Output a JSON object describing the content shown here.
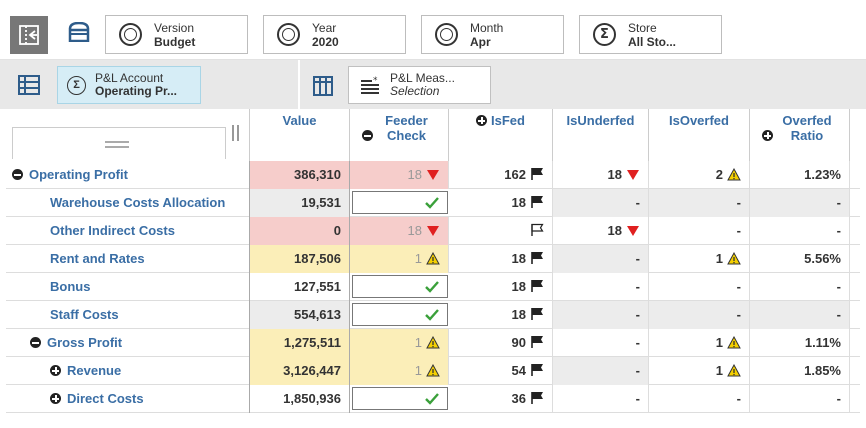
{
  "filters": [
    {
      "label": "Version",
      "value": "Budget",
      "icon": "target-icon"
    },
    {
      "label": "Year",
      "value": "2020",
      "icon": "target-icon"
    },
    {
      "label": "Month",
      "value": "Apr",
      "icon": "target-icon"
    },
    {
      "label": "Store",
      "value": "All Sto...",
      "icon": "sigma-icon"
    }
  ],
  "rows_dim": {
    "label": "P&L Account",
    "value": "Operating Pr..."
  },
  "cols_dim": {
    "label": "P&L Meas...",
    "value": "Selection"
  },
  "columns": [
    "Value",
    "Feeder Check",
    "IsFed",
    "IsUnderfed",
    "IsOverfed",
    "Overfed Ratio"
  ],
  "status_colors": {
    "red": "#f6cdcb",
    "yellow": "#fbeeb8",
    "grey": "#ececec",
    "link": "#3a6ea5"
  },
  "rows": [
    {
      "name": "Operating Profit",
      "value": "386,310",
      "feeder": "18",
      "isfed": "162",
      "underfed": "18",
      "overfed": "2",
      "ratio": "1.23%"
    },
    {
      "name": "Warehouse Costs Allocation",
      "value": "19,531",
      "feeder": "",
      "isfed": "18",
      "underfed": "-",
      "overfed": "-",
      "ratio": "-"
    },
    {
      "name": "Other Indirect Costs",
      "value": "0",
      "feeder": "18",
      "isfed": "",
      "underfed": "18",
      "overfed": "-",
      "ratio": "-"
    },
    {
      "name": "Rent and Rates",
      "value": "187,506",
      "feeder": "1",
      "isfed": "18",
      "underfed": "-",
      "overfed": "1",
      "ratio": "5.56%"
    },
    {
      "name": "Bonus",
      "value": "127,551",
      "feeder": "",
      "isfed": "18",
      "underfed": "-",
      "overfed": "-",
      "ratio": "-"
    },
    {
      "name": "Staff Costs",
      "value": "554,613",
      "feeder": "",
      "isfed": "18",
      "underfed": "-",
      "overfed": "-",
      "ratio": "-"
    },
    {
      "name": "Gross Profit",
      "value": "1,275,511",
      "feeder": "1",
      "isfed": "90",
      "underfed": "-",
      "overfed": "1",
      "ratio": "1.11%"
    },
    {
      "name": "Revenue",
      "value": "3,126,447",
      "feeder": "1",
      "isfed": "54",
      "underfed": "-",
      "overfed": "1",
      "ratio": "1.85%"
    },
    {
      "name": "Direct Costs",
      "value": "1,850,936",
      "feeder": "",
      "isfed": "36",
      "underfed": "-",
      "overfed": "-",
      "ratio": "-"
    }
  ]
}
